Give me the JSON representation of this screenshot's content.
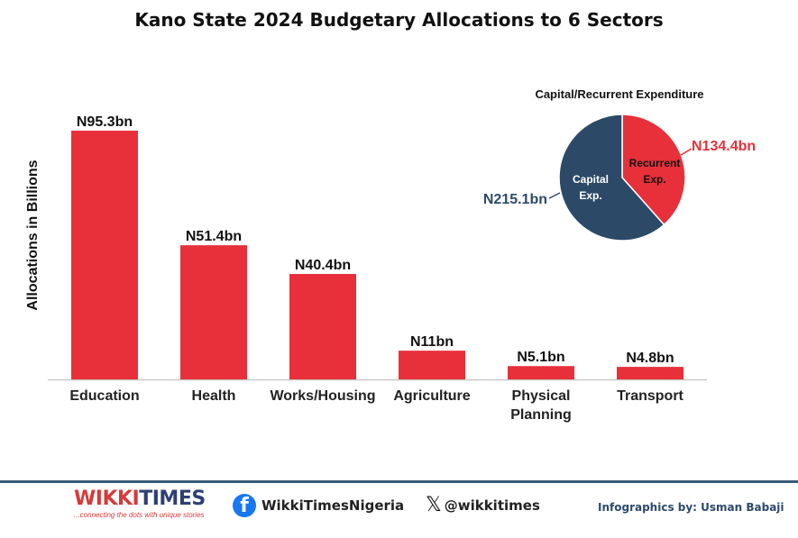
{
  "chart_data": [
    {
      "type": "bar",
      "title": "Kano State 2024 Budgetary Allocations to 6 Sectors",
      "ylabel": "Allocations in Billions",
      "xlabel": "",
      "categories": [
        "Education",
        "Health",
        "Works/Housing",
        "Agriculture",
        "Physical Planning",
        "Transport"
      ],
      "values": [
        95.3,
        51.4,
        40.4,
        11,
        5.1,
        4.8
      ],
      "data_labels": [
        "N95.3bn",
        "N51.4bn",
        "N40.4bn",
        "N11bn",
        "N5.1bn",
        "N4.8bn"
      ],
      "ylim": [
        0,
        95.3
      ],
      "grid": false,
      "bar_color": "#e8303a"
    },
    {
      "type": "pie",
      "title": "Capital/Recurrent Expenditure",
      "slices": [
        {
          "label": "Recurrent Exp.",
          "label_lines": [
            "Recurrent",
            "Exp."
          ],
          "value": 134.4,
          "value_label": "N134.4bn",
          "color": "#e8303a"
        },
        {
          "label": "Capital Exp.",
          "label_lines": [
            "Capital",
            "Exp."
          ],
          "value": 215.1,
          "value_label": "N215.1bn",
          "color": "#2c4a68"
        }
      ]
    }
  ],
  "footer": {
    "brand_wikki": "WIKKI",
    "brand_times": "TIMES",
    "brand_tagline": "...connecting the dots with unique stories",
    "facebook_handle": "WikkiTimesNigeria",
    "x_handle": "@wikkitimes",
    "credit": "Infographics by: Usman Babaji",
    "facebook_icon": "f",
    "x_icon": "𝕏"
  }
}
